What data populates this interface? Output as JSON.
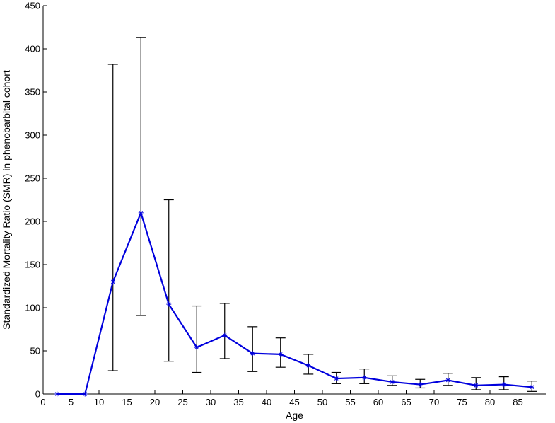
{
  "chart_data": {
    "type": "line",
    "title": "",
    "xlabel": "Age",
    "ylabel": "Standardized Mortality Ratio (SMR) in phenobarbital cohort",
    "xlim": [
      0,
      90
    ],
    "ylim": [
      0,
      450
    ],
    "xticks": [
      0,
      5,
      10,
      15,
      20,
      25,
      30,
      35,
      40,
      45,
      50,
      55,
      60,
      65,
      70,
      75,
      80,
      85
    ],
    "yticks": [
      0,
      50,
      100,
      150,
      200,
      250,
      300,
      350,
      400,
      450
    ],
    "grid": false,
    "series": [
      {
        "color": "#0000dd",
        "marker": "asterisk",
        "points": [
          {
            "x": 2.5,
            "y": 0
          },
          {
            "x": 7.5,
            "y": 0
          },
          {
            "x": 12.5,
            "y": 130,
            "lower": 27,
            "upper": 382
          },
          {
            "x": 17.5,
            "y": 210,
            "lower": 91,
            "upper": 413
          },
          {
            "x": 22.5,
            "y": 104,
            "lower": 38,
            "upper": 225
          },
          {
            "x": 27.5,
            "y": 54,
            "lower": 25,
            "upper": 102
          },
          {
            "x": 32.5,
            "y": 68,
            "lower": 41,
            "upper": 105
          },
          {
            "x": 37.5,
            "y": 47,
            "lower": 26,
            "upper": 78
          },
          {
            "x": 42.5,
            "y": 46,
            "lower": 31,
            "upper": 65
          },
          {
            "x": 47.5,
            "y": 33,
            "lower": 23,
            "upper": 46
          },
          {
            "x": 52.5,
            "y": 18,
            "lower": 12,
            "upper": 25
          },
          {
            "x": 57.5,
            "y": 19,
            "lower": 12,
            "upper": 29
          },
          {
            "x": 62.5,
            "y": 14,
            "lower": 10,
            "upper": 21
          },
          {
            "x": 67.5,
            "y": 11,
            "lower": 7,
            "upper": 17
          },
          {
            "x": 72.5,
            "y": 16,
            "lower": 10,
            "upper": 24
          },
          {
            "x": 77.5,
            "y": 10,
            "lower": 5,
            "upper": 19
          },
          {
            "x": 82.5,
            "y": 11,
            "lower": 5,
            "upper": 20
          },
          {
            "x": 87.5,
            "y": 8,
            "lower": 3,
            "upper": 15
          }
        ]
      }
    ]
  }
}
